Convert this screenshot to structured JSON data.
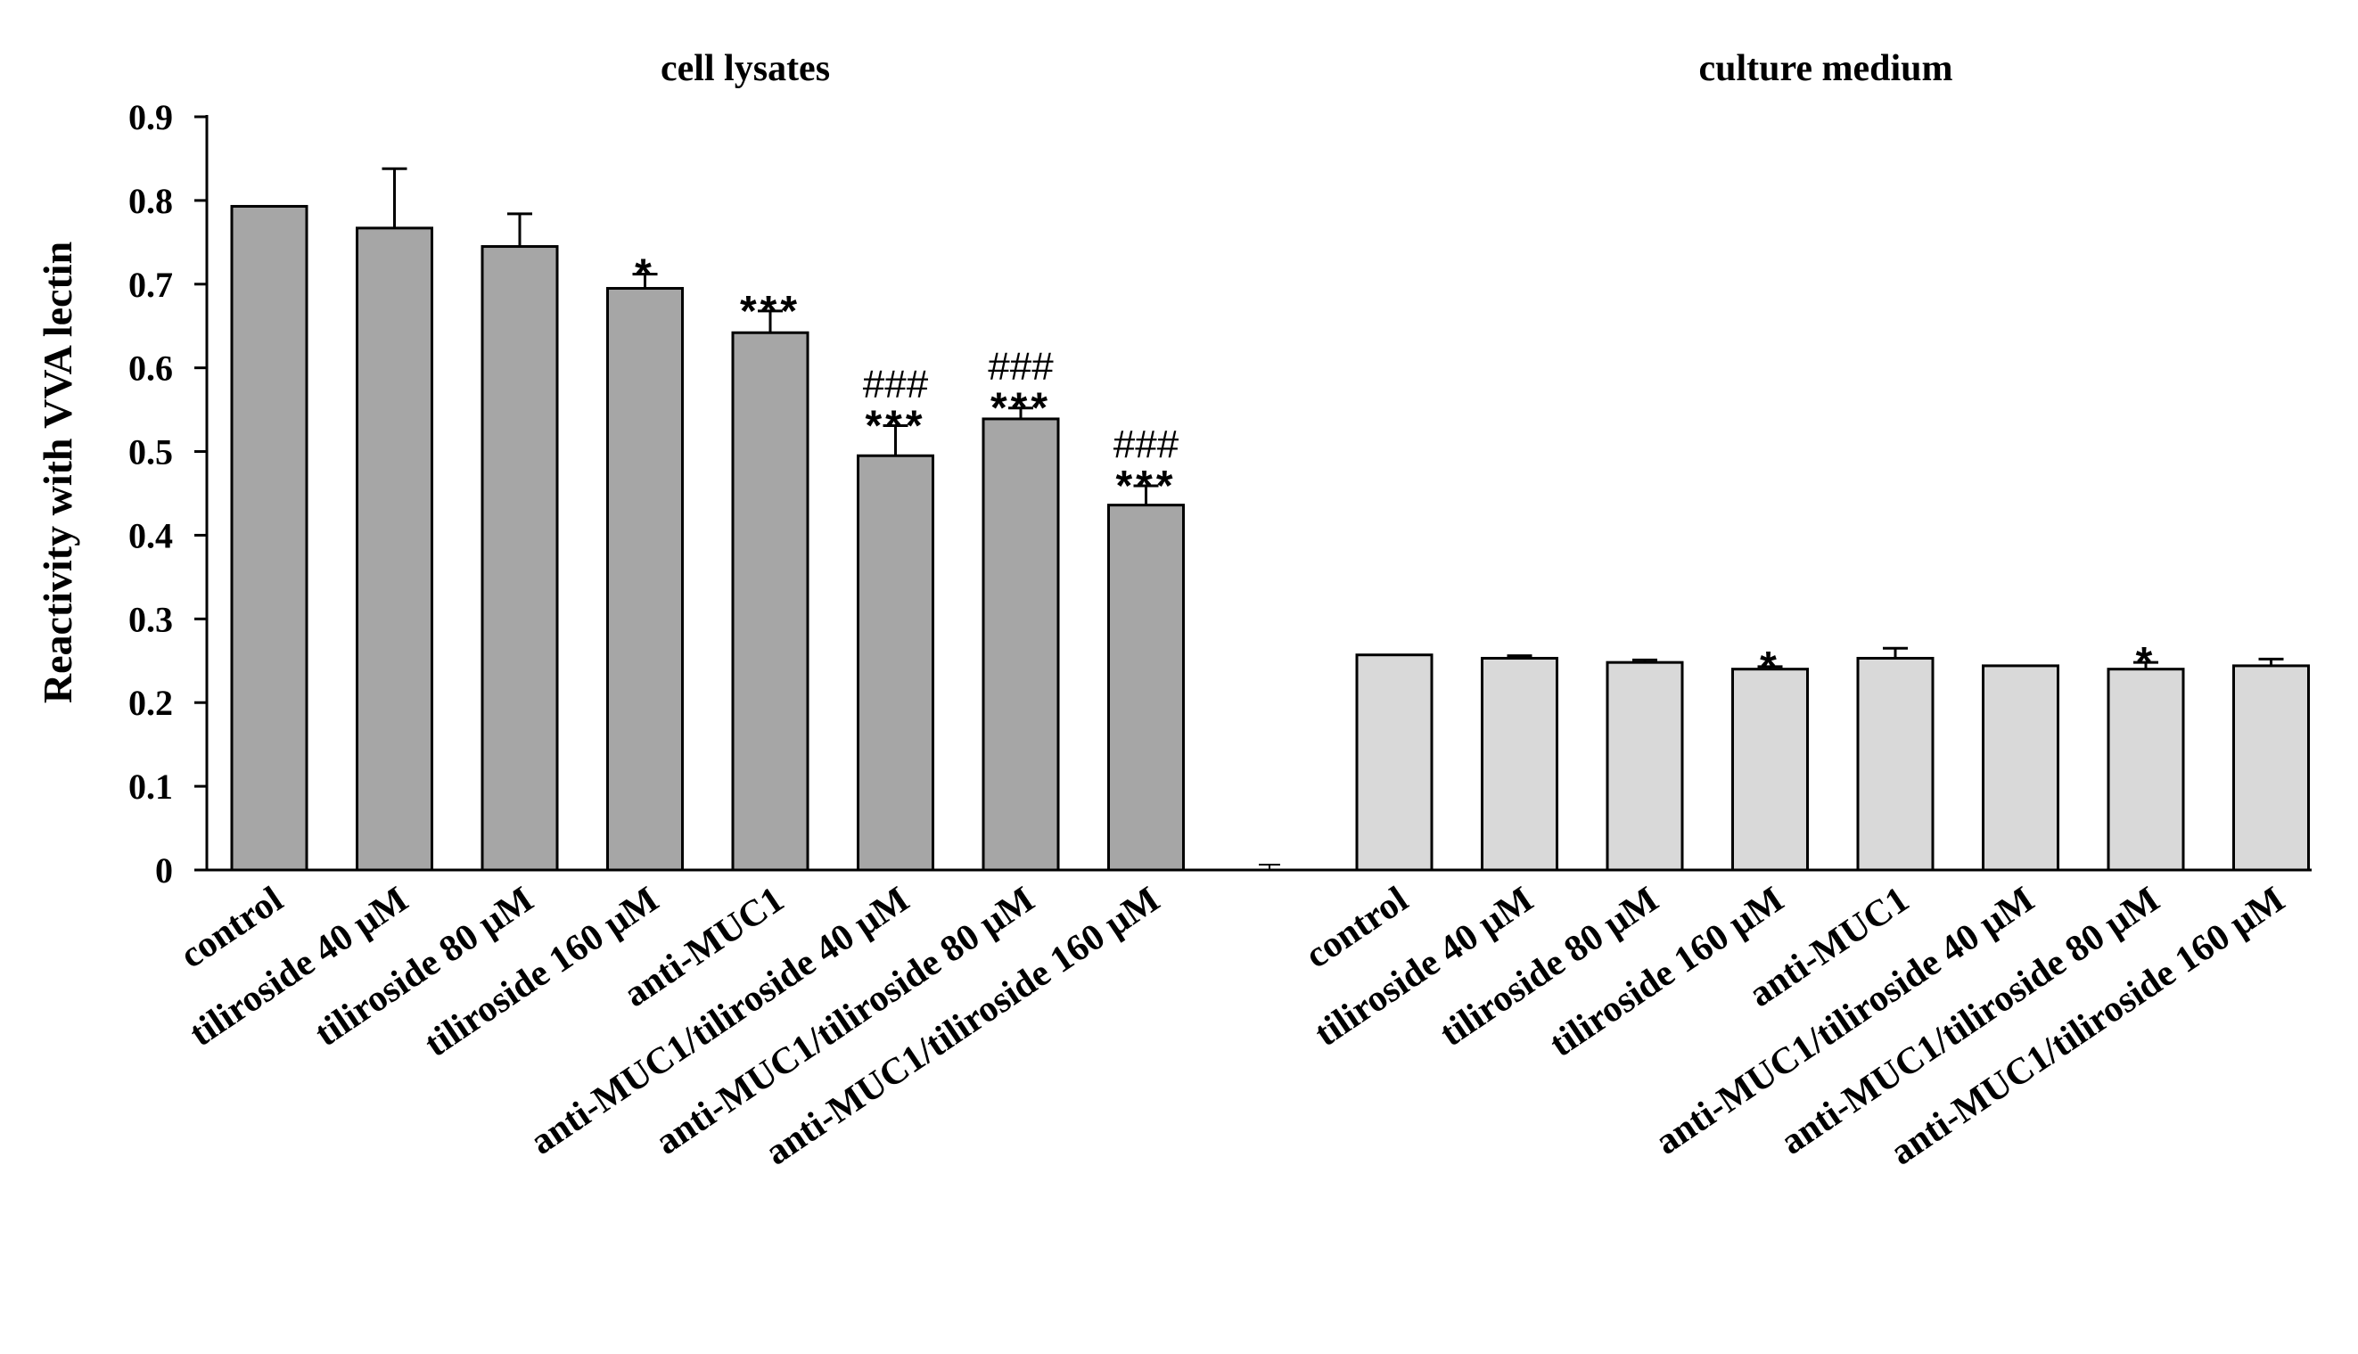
{
  "chart_data": {
    "type": "bar",
    "ylabel": "Reactivity with VVA lectin",
    "ylim": [
      0,
      0.9
    ],
    "yticks": [
      "0",
      "0.1",
      "0.2",
      "0.3",
      "0.4",
      "0.5",
      "0.6",
      "0.7",
      "0.8",
      "0.9"
    ],
    "colors": {
      "group1": "#a6a6a6",
      "group2": "#d9d9d9",
      "edge": "#000000"
    },
    "groups": [
      {
        "title": "cell lysates",
        "categories": [
          "control",
          "tiliroside 40 μM",
          "tiliroside 80 μM",
          "tiliroside 160 μM",
          "anti-MUC1",
          "anti-MUC1/tiliroside  40 μM",
          "anti-MUC1/tiliroside  80 μM",
          "anti-MUC1/tiliroside  160 μM"
        ],
        "values": [
          0.793,
          0.767,
          0.745,
          0.695,
          0.642,
          0.495,
          0.539,
          0.436
        ],
        "errors": [
          0.0,
          0.071,
          0.039,
          0.017,
          0.026,
          0.036,
          0.013,
          0.023
        ],
        "stars": [
          "",
          "",
          "",
          "*",
          "***",
          "***",
          "***",
          "***"
        ],
        "hashes": [
          "",
          "",
          "",
          "",
          "",
          "###",
          "###",
          "###"
        ]
      },
      {
        "title": "culture medium",
        "categories": [
          "control",
          "tiliroside 40 μM",
          "tiliroside 80 μM",
          "tiliroside 160 μM",
          "anti-MUC1",
          "anti-MUC1/tiliroside  40 μM",
          "anti-MUC1/tiliroside  80 μM",
          "anti-MUC1/tiliroside  160 μM"
        ],
        "values": [
          0.257,
          0.253,
          0.248,
          0.24,
          0.253,
          0.244,
          0.24,
          0.244
        ],
        "errors": [
          0.0,
          0.003,
          0.003,
          0.003,
          0.012,
          0.0,
          0.008,
          0.008
        ],
        "stars": [
          "",
          "",
          "",
          "*",
          "",
          "",
          "*",
          ""
        ],
        "hashes": [
          "",
          "",
          "",
          "",
          "",
          "",
          "",
          ""
        ]
      }
    ]
  }
}
